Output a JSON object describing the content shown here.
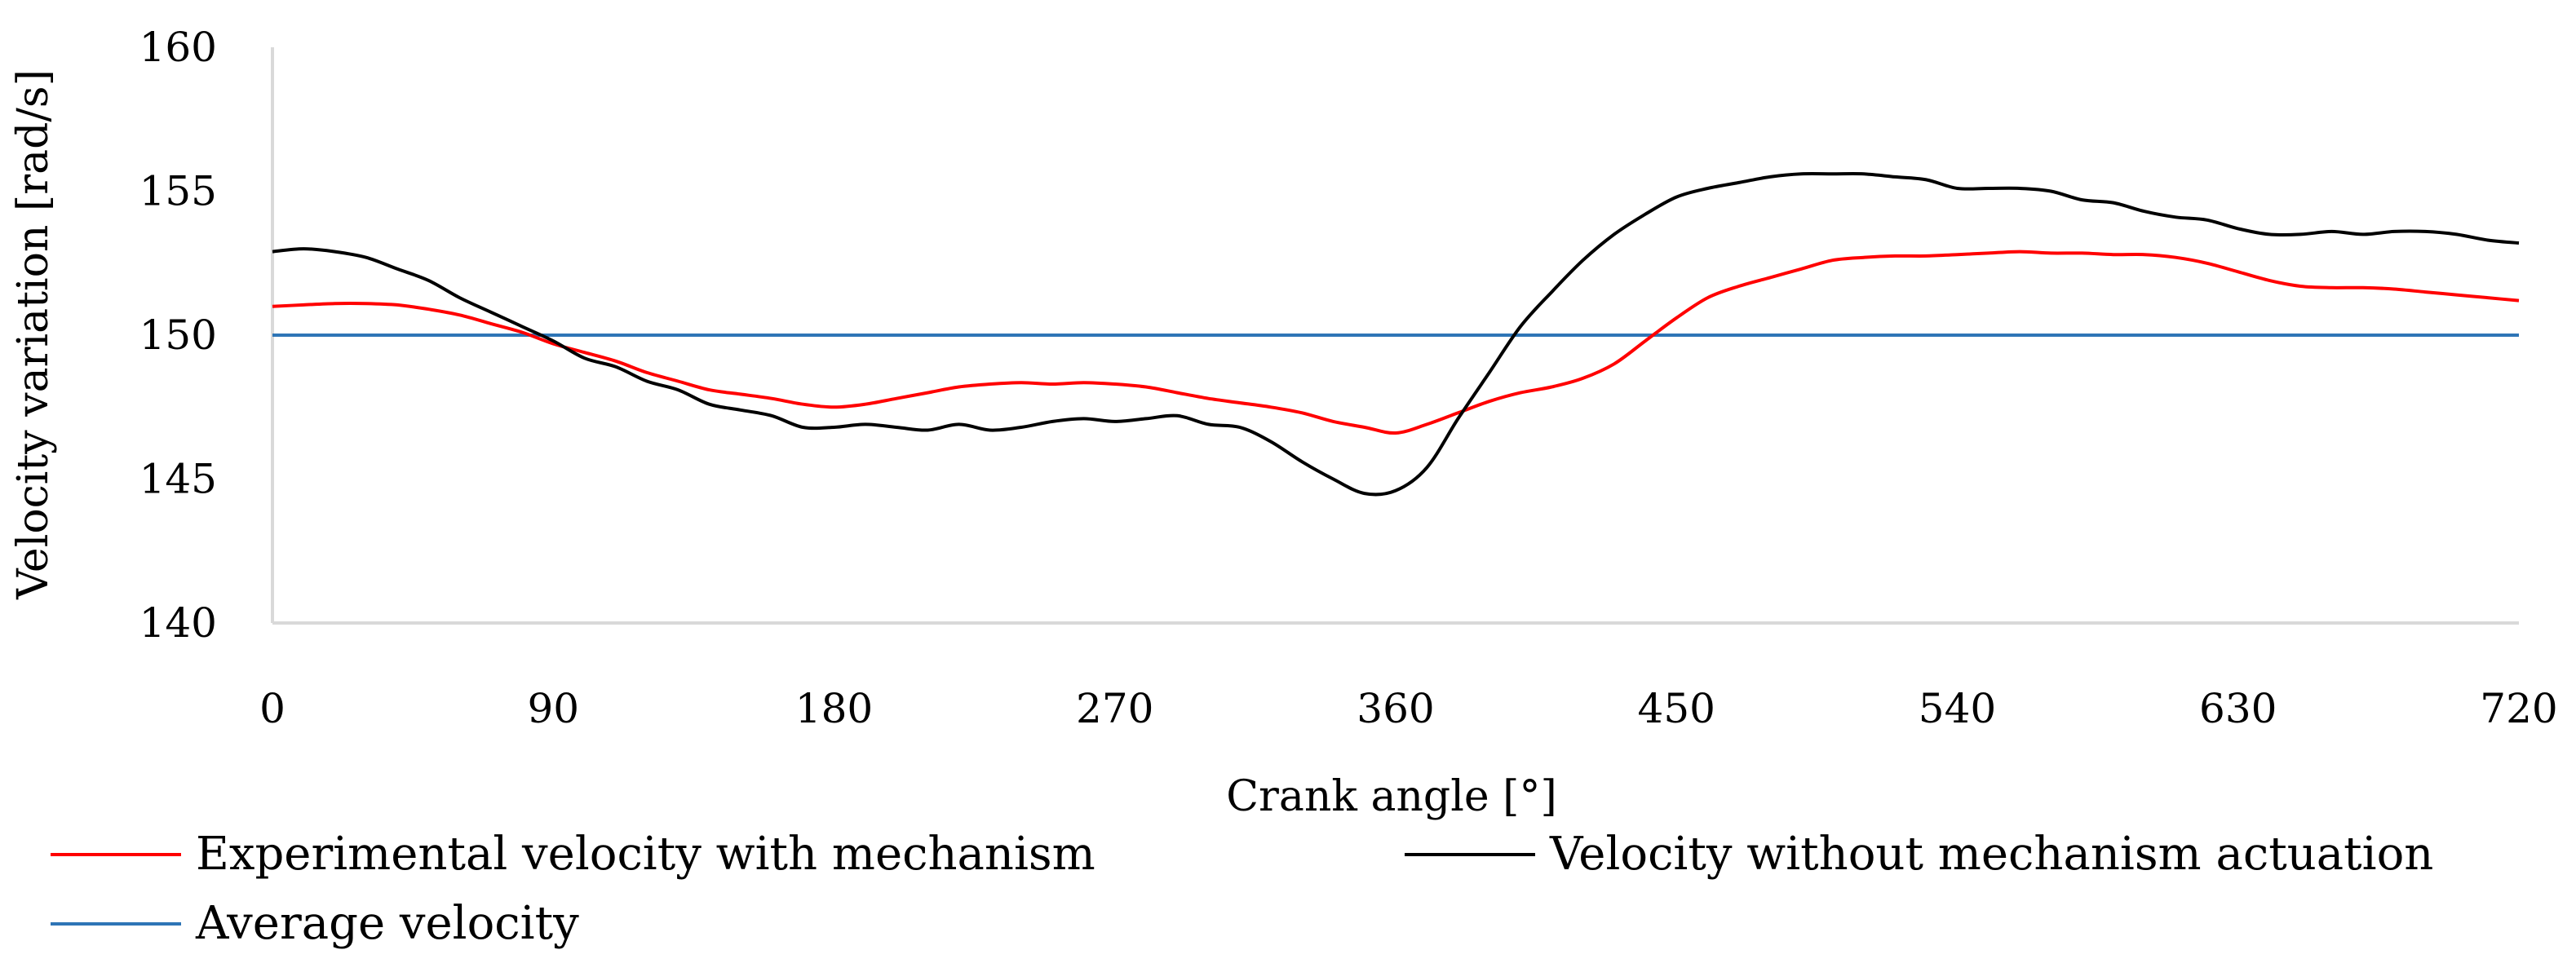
{
  "chart_data": {
    "type": "line",
    "title": "",
    "xlabel": "Crank angle [°]",
    "ylabel": "Velocity variation [rad/s]",
    "xlim": [
      0,
      720
    ],
    "ylim": [
      140,
      160
    ],
    "xticks": [
      0,
      90,
      180,
      270,
      360,
      450,
      540,
      630,
      720
    ],
    "yticks": [
      140,
      145,
      150,
      155,
      160
    ],
    "xtick_labels": [
      "0",
      "90",
      "180",
      "270",
      "360",
      "450",
      "540",
      "630",
      "720"
    ],
    "ytick_labels": [
      "140",
      "145",
      "150",
      "155",
      "160"
    ],
    "grid": false,
    "legend_position": "bottom",
    "series": [
      {
        "name": "Experimental velocity with mechanism",
        "color": "#ff0000",
        "x": [
          0,
          10,
          20,
          30,
          40,
          50,
          60,
          70,
          80,
          90,
          100,
          110,
          120,
          130,
          140,
          150,
          160,
          170,
          180,
          190,
          200,
          210,
          220,
          230,
          240,
          250,
          260,
          270,
          280,
          290,
          300,
          310,
          320,
          330,
          340,
          350,
          360,
          370,
          380,
          390,
          400,
          410,
          420,
          430,
          440,
          450,
          460,
          470,
          480,
          490,
          500,
          510,
          520,
          530,
          540,
          550,
          560,
          570,
          580,
          590,
          600,
          610,
          620,
          630,
          640,
          650,
          660,
          670,
          680,
          690,
          700,
          710,
          720
        ],
        "values": [
          151.0,
          151.05,
          151.1,
          151.1,
          151.05,
          150.9,
          150.7,
          150.4,
          150.1,
          149.7,
          149.4,
          149.1,
          148.7,
          148.4,
          148.1,
          147.95,
          147.8,
          147.6,
          147.5,
          147.6,
          147.8,
          148.0,
          148.2,
          148.3,
          148.35,
          148.3,
          148.35,
          148.3,
          148.2,
          148.0,
          147.8,
          147.65,
          147.5,
          147.3,
          147.0,
          146.8,
          146.6,
          146.9,
          147.3,
          147.7,
          148.0,
          148.2,
          148.5,
          149.0,
          149.8,
          150.6,
          151.3,
          151.7,
          152.0,
          152.3,
          152.6,
          152.7,
          152.75,
          152.75,
          152.8,
          152.85,
          152.9,
          152.85,
          152.85,
          152.8,
          152.8,
          152.7,
          152.5,
          152.2,
          151.9,
          151.7,
          151.65,
          151.65,
          151.6,
          151.5,
          151.4,
          151.3,
          151.2
        ]
      },
      {
        "name": "Velocity without mechanism actuation",
        "color": "#000000",
        "x": [
          0,
          10,
          20,
          30,
          40,
          50,
          60,
          70,
          80,
          90,
          100,
          110,
          120,
          130,
          140,
          150,
          160,
          170,
          180,
          190,
          200,
          210,
          220,
          230,
          240,
          250,
          260,
          270,
          280,
          290,
          300,
          310,
          320,
          330,
          340,
          350,
          360,
          370,
          380,
          390,
          400,
          410,
          420,
          430,
          440,
          450,
          460,
          470,
          480,
          490,
          500,
          510,
          520,
          530,
          540,
          550,
          560,
          570,
          580,
          590,
          600,
          610,
          620,
          630,
          640,
          650,
          660,
          670,
          680,
          690,
          700,
          710,
          720
        ],
        "values": [
          152.9,
          153.0,
          152.9,
          152.7,
          152.3,
          151.9,
          151.3,
          150.8,
          150.3,
          149.8,
          149.2,
          148.9,
          148.4,
          148.1,
          147.6,
          147.4,
          147.2,
          146.8,
          146.8,
          146.9,
          146.8,
          146.7,
          146.9,
          146.7,
          146.8,
          147.0,
          147.1,
          147.0,
          147.1,
          147.2,
          146.9,
          146.8,
          146.3,
          145.6,
          145.0,
          144.5,
          144.6,
          145.4,
          147.1,
          148.7,
          150.3,
          151.5,
          152.6,
          153.5,
          154.2,
          154.8,
          155.1,
          155.3,
          155.5,
          155.6,
          155.6,
          155.6,
          155.5,
          155.4,
          155.1,
          155.1,
          155.1,
          155.0,
          154.7,
          154.6,
          154.3,
          154.1,
          154.0,
          153.7,
          153.5,
          153.5,
          153.6,
          153.5,
          153.6,
          153.6,
          153.5,
          153.3,
          153.2
        ]
      },
      {
        "name": "Average velocity",
        "color": "#2e75b6",
        "x": [
          0,
          720
        ],
        "values": [
          150,
          150
        ]
      }
    ]
  }
}
